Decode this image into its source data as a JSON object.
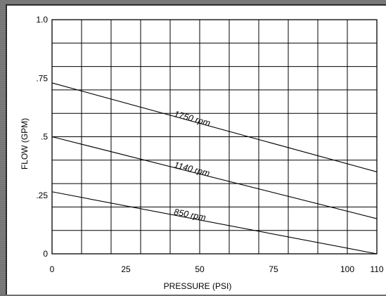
{
  "chart_data": {
    "type": "line",
    "title": "",
    "xlabel": "PRESSURE (PSI)",
    "ylabel": "FLOW (GPM)",
    "xlim": [
      0,
      110
    ],
    "ylim": [
      0,
      1.0
    ],
    "x_ticks": [
      0,
      25,
      50,
      75,
      100,
      110
    ],
    "x_tick_labels": [
      "0",
      "25",
      "50",
      "75",
      "100",
      "110"
    ],
    "y_ticks": [
      0,
      0.25,
      0.5,
      0.75,
      1.0
    ],
    "y_tick_labels": [
      "0",
      ".25",
      ".5",
      ".75",
      "1.0"
    ],
    "grid": true,
    "series": [
      {
        "name": "1750 rpm",
        "x": [
          0,
          110
        ],
        "y": [
          0.73,
          0.35
        ]
      },
      {
        "name": "1140 rpm",
        "x": [
          0,
          110
        ],
        "y": [
          0.5,
          0.15
        ]
      },
      {
        "name": "850 rpm",
        "x": [
          0,
          110
        ],
        "y": [
          0.265,
          0.0
        ]
      }
    ]
  },
  "colors": {
    "line": "#000000",
    "grid": "#000000",
    "background": "#ffffff"
  }
}
